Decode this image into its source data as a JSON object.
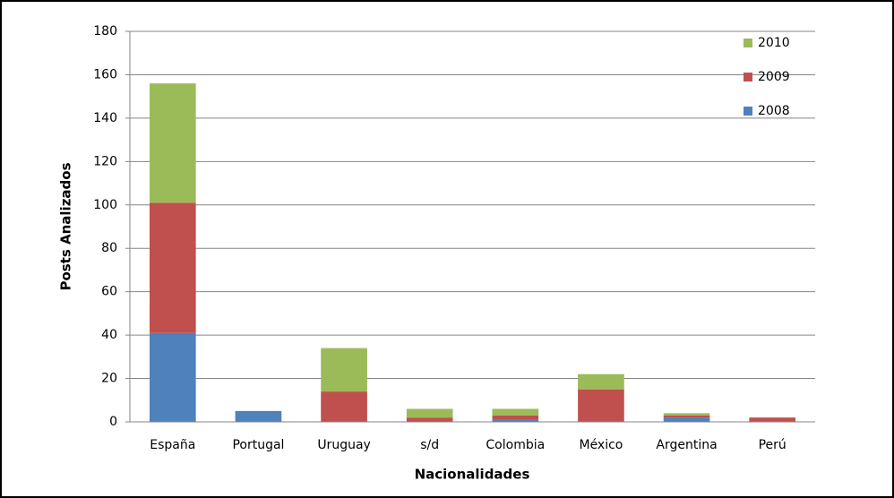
{
  "chart_data": {
    "type": "stacked_bar",
    "x_label": "Nacionalidades",
    "y_label": "Posts Analizados",
    "categories": [
      "España",
      "Portugal",
      "Uruguay",
      "s/d",
      "Colombia",
      "México",
      "Argentina",
      "Perú"
    ],
    "series": [
      {
        "name": "2008",
        "color": "#4f81bd",
        "values": [
          41,
          5,
          0,
          0,
          1,
          0,
          2,
          0
        ]
      },
      {
        "name": "2009",
        "color": "#c0504d",
        "values": [
          60,
          0,
          14,
          2,
          2,
          15,
          1,
          2
        ]
      },
      {
        "name": "2010",
        "color": "#9bbb59",
        "values": [
          55,
          0,
          20,
          4,
          3,
          7,
          1,
          0
        ]
      }
    ],
    "ylim": [
      0,
      180
    ],
    "yticks": [
      0,
      20,
      40,
      60,
      80,
      100,
      120,
      140,
      160,
      180
    ],
    "grid": true,
    "legend": "top-right"
  }
}
